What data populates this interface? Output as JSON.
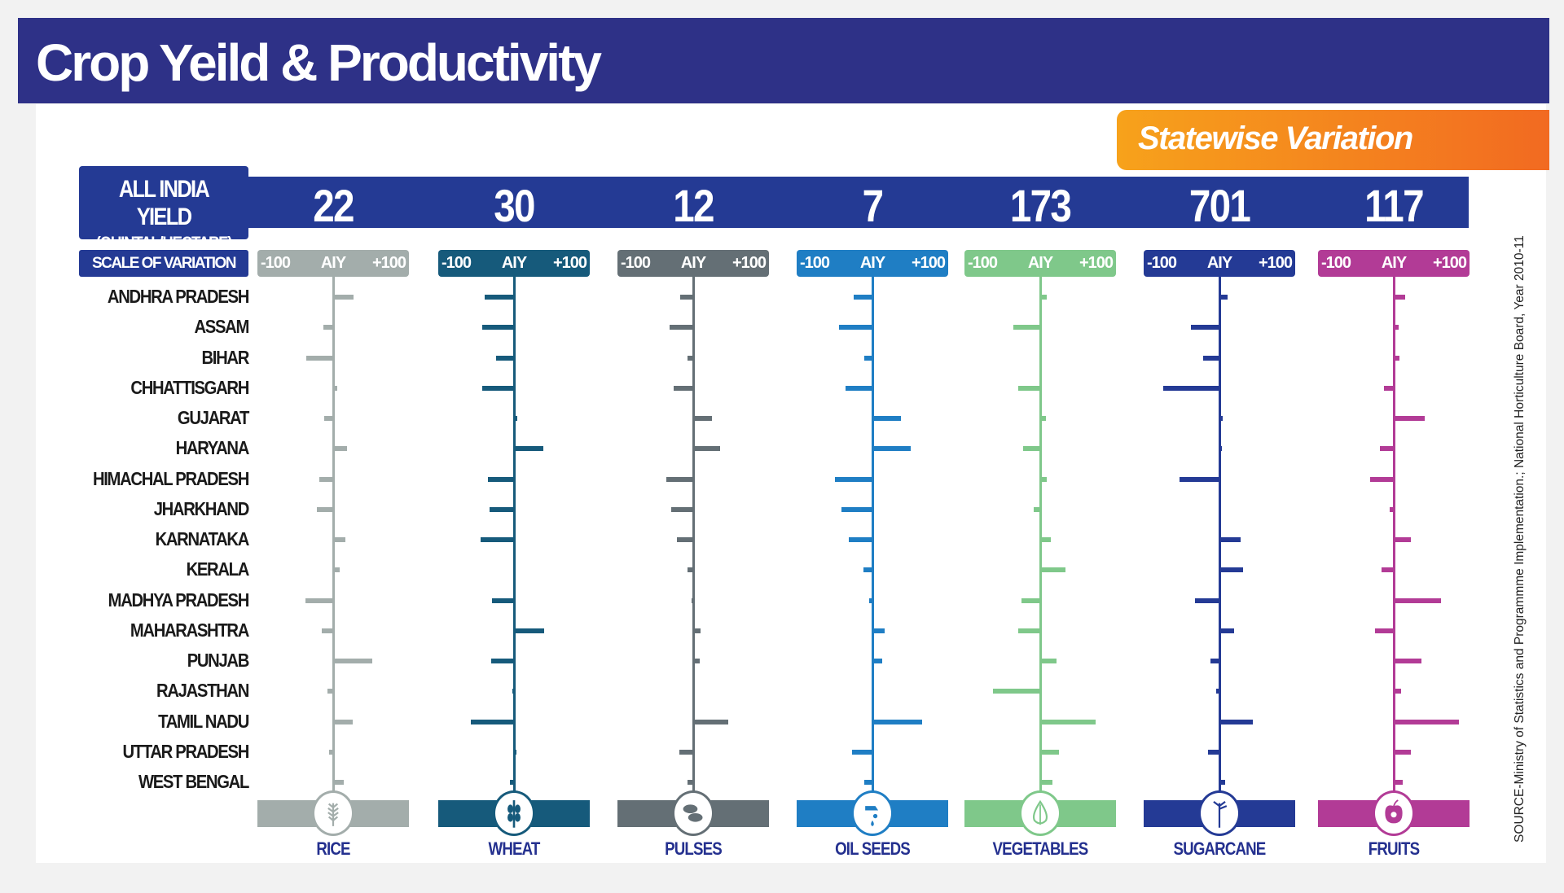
{
  "title": "Crop Yeild & Productivity",
  "badge": "Statewise Variation",
  "aiy_label_line1": "ALL INDIA YIELD",
  "aiy_label_line2": "(QUINTAL/HECTARE)",
  "scale_label": "SCALE OF VARIATION",
  "scale_min": "-100",
  "scale_mid": "AIY",
  "scale_max": "+100",
  "source": "SOURCE-Ministry of Statistics and Programmme Implementation.; National Horticulture Board, Year 2010-11",
  "chart_data": {
    "type": "bar",
    "orientation": "horizontal-diverging",
    "xlim": [
      -100,
      100
    ],
    "categories": [
      "ANDHRA PRADESH",
      "ASSAM",
      "BIHAR",
      "CHHATTISGARH",
      "GUJARAT",
      "HARYANA",
      "HIMACHAL PRADESH",
      "JHARKHAND",
      "KARNATAKA",
      "KERALA",
      "MADHYA PRADESH",
      "MAHARASHTRA",
      "PUNJAB",
      "RAJASTHAN",
      "TAMIL NADU",
      "UTTAR PRADESH",
      "WEST BENGAL"
    ],
    "series": [
      {
        "name": "RICE",
        "all_india_yield": "22",
        "color": "#a3adab",
        "icon": "rice-icon",
        "values": [
          26,
          -13,
          -36,
          4,
          -12,
          17,
          -18,
          -22,
          15,
          8,
          -37,
          -15,
          50,
          -7,
          25,
          -5,
          13
        ]
      },
      {
        "name": "WHEAT",
        "all_india_yield": "30",
        "color": "#165a7b",
        "icon": "wheat-icon",
        "values": [
          -39,
          -42,
          -24,
          -42,
          3,
          38,
          -34,
          -32,
          -44,
          0,
          -29,
          39,
          -30,
          -2,
          -57,
          2,
          -5
        ]
      },
      {
        "name": "PULSES",
        "all_india_yield": "12",
        "color": "#646f75",
        "icon": "pulses-icon",
        "values": [
          -17,
          -31,
          -8,
          -26,
          24,
          34,
          -35,
          -29,
          -21,
          -8,
          -2,
          9,
          7,
          0,
          45,
          -18,
          -7
        ]
      },
      {
        "name": "OIL SEEDS",
        "all_india_yield": "7",
        "color": "#1f7ec4",
        "icon": "oil-seeds-icon",
        "values": [
          -25,
          -44,
          -11,
          -36,
          37,
          49,
          -49,
          -41,
          -31,
          -12,
          -4,
          15,
          12,
          0,
          64,
          -27,
          -11
        ]
      },
      {
        "name": "VEGETABLES",
        "all_india_yield": "173",
        "color": "#7fc88a",
        "icon": "vegetables-icon",
        "values": [
          7,
          -35,
          0,
          -29,
          6,
          -23,
          7,
          -9,
          13,
          32,
          -25,
          -29,
          20,
          -62,
          72,
          24,
          15
        ]
      },
      {
        "name": "SUGARCANE",
        "all_india_yield": "701",
        "color": "#243a95",
        "icon": "sugarcane-icon",
        "values": [
          10,
          -38,
          -21,
          -74,
          3,
          2,
          -53,
          -1,
          27,
          30,
          -32,
          18,
          -12,
          -4,
          43,
          -15,
          6
        ]
      },
      {
        "name": "FRUITS",
        "all_india_yield": "117",
        "color": "#b23b96",
        "icon": "fruits-icon",
        "values": [
          14,
          5,
          6,
          -13,
          40,
          -18,
          -31,
          -5,
          22,
          -16,
          61,
          -25,
          36,
          9,
          85,
          22,
          11
        ]
      }
    ]
  }
}
